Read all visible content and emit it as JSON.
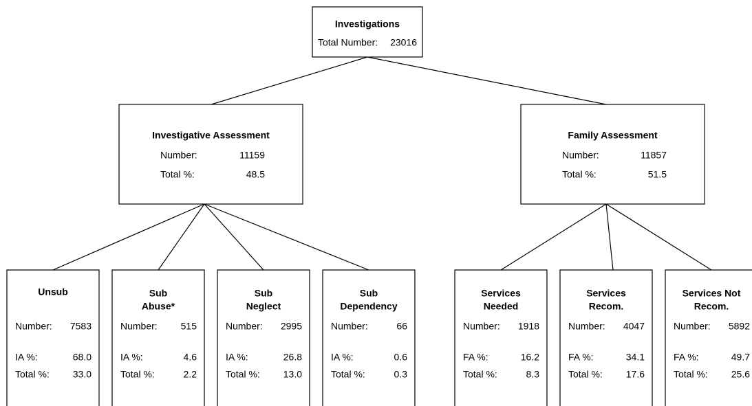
{
  "nodes": [
    {
      "title": [
        "Investigations"
      ],
      "rows": [
        [
          "Total Number:",
          "23016"
        ]
      ]
    },
    {
      "title": [
        "Investigative Assessment"
      ],
      "rows": [
        [
          "Number:",
          "11159"
        ],
        [
          "Total %:",
          "48.5"
        ]
      ]
    },
    {
      "title": [
        "Family Assessment"
      ],
      "rows": [
        [
          "Number:",
          "11857"
        ],
        [
          "Total %:",
          "51.5"
        ]
      ]
    },
    {
      "title": [
        "Unsub"
      ],
      "rows": [
        [
          "Number:",
          "7583"
        ],
        [
          "IA %:",
          "68.0"
        ],
        [
          "Total %:",
          "33.0"
        ]
      ]
    },
    {
      "title": [
        "Sub",
        "Abuse*"
      ],
      "rows": [
        [
          "Number:",
          "515"
        ],
        [
          "IA %:",
          "4.6"
        ],
        [
          "Total %:",
          "2.2"
        ]
      ]
    },
    {
      "title": [
        "Sub",
        "Neglect"
      ],
      "rows": [
        [
          "Number:",
          "2995"
        ],
        [
          "IA %:",
          "26.8"
        ],
        [
          "Total %:",
          "13.0"
        ]
      ]
    },
    {
      "title": [
        "Sub",
        "Dependency"
      ],
      "rows": [
        [
          "Number:",
          "66"
        ],
        [
          "IA %:",
          "0.6"
        ],
        [
          "Total %:",
          "0.3"
        ]
      ]
    },
    {
      "title": [
        "Services",
        "Needed"
      ],
      "rows": [
        [
          "Number:",
          "1918"
        ],
        [
          "FA %:",
          "16.2"
        ],
        [
          "Total %:",
          "8.3"
        ]
      ]
    },
    {
      "title": [
        "Services",
        "Recom."
      ],
      "rows": [
        [
          "Number:",
          "4047"
        ],
        [
          "FA %:",
          "34.1"
        ],
        [
          "Total %:",
          "17.6"
        ]
      ]
    },
    {
      "title": [
        "Services Not",
        "Recom."
      ],
      "rows": [
        [
          "Number:",
          "5892"
        ],
        [
          "FA %:",
          "49.7"
        ],
        [
          "Total %:",
          "25.6"
        ]
      ]
    }
  ]
}
